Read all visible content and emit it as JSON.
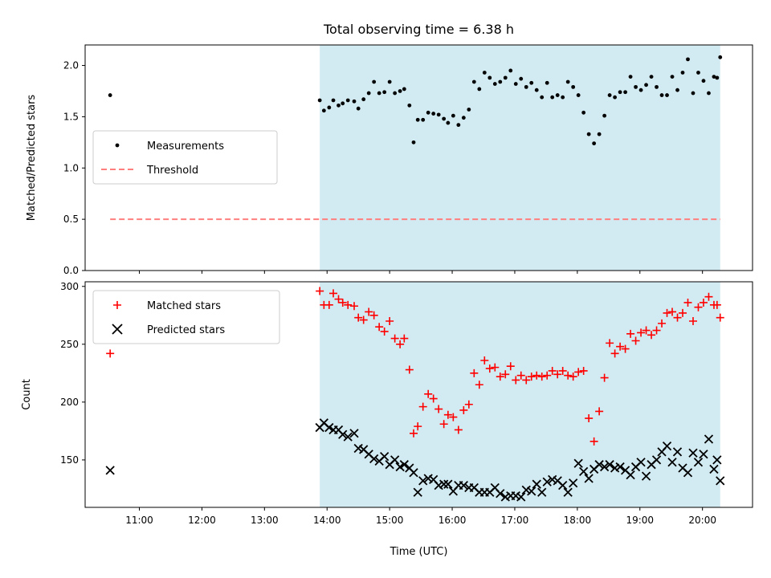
{
  "chart_data": [
    {
      "type": "scatter",
      "title": "Total observing time = 6.38 h",
      "xlabel": "",
      "ylabel": "Matched/Predicted stars",
      "xlim": [
        "10:08",
        "20:48"
      ],
      "ylim": [
        0,
        2.2
      ],
      "yticks": [
        "0.0",
        "0.5",
        "1.0",
        "1.5",
        "2.0"
      ],
      "highlight_span": [
        "13:53",
        "20:17"
      ],
      "highlight_color": "#add8e6",
      "legend_position": "center-left",
      "series": [
        {
          "name": "Measurements",
          "color": "#000000",
          "marker": "dot",
          "points": [
            [
              "10:32",
              1.71
            ],
            [
              "13:53",
              1.66
            ],
            [
              "13:57",
              1.56
            ],
            [
              "14:02",
              1.59
            ],
            [
              "14:06",
              1.66
            ],
            [
              "14:11",
              1.61
            ],
            [
              "14:15",
              1.63
            ],
            [
              "14:20",
              1.66
            ],
            [
              "14:26",
              1.65
            ],
            [
              "14:30",
              1.58
            ],
            [
              "14:35",
              1.67
            ],
            [
              "14:40",
              1.73
            ],
            [
              "14:45",
              1.84
            ],
            [
              "14:50",
              1.73
            ],
            [
              "14:55",
              1.74
            ],
            [
              "15:00",
              1.84
            ],
            [
              "15:05",
              1.73
            ],
            [
              "15:10",
              1.75
            ],
            [
              "15:14",
              1.77
            ],
            [
              "15:19",
              1.61
            ],
            [
              "15:23",
              1.25
            ],
            [
              "15:27",
              1.47
            ],
            [
              "15:32",
              1.47
            ],
            [
              "15:37",
              1.54
            ],
            [
              "15:42",
              1.53
            ],
            [
              "15:47",
              1.52
            ],
            [
              "15:52",
              1.48
            ],
            [
              "15:56",
              1.44
            ],
            [
              "16:01",
              1.51
            ],
            [
              "16:06",
              1.42
            ],
            [
              "16:11",
              1.49
            ],
            [
              "16:16",
              1.57
            ],
            [
              "16:21",
              1.84
            ],
            [
              "16:26",
              1.77
            ],
            [
              "16:31",
              1.93
            ],
            [
              "16:36",
              1.88
            ],
            [
              "16:41",
              1.82
            ],
            [
              "16:46",
              1.84
            ],
            [
              "16:51",
              1.88
            ],
            [
              "16:56",
              1.95
            ],
            [
              "17:01",
              1.82
            ],
            [
              "17:06",
              1.87
            ],
            [
              "17:11",
              1.79
            ],
            [
              "17:16",
              1.83
            ],
            [
              "17:21",
              1.76
            ],
            [
              "17:26",
              1.69
            ],
            [
              "17:31",
              1.83
            ],
            [
              "17:36",
              1.69
            ],
            [
              "17:41",
              1.71
            ],
            [
              "17:46",
              1.69
            ],
            [
              "17:51",
              1.84
            ],
            [
              "17:56",
              1.79
            ],
            [
              "18:01",
              1.71
            ],
            [
              "18:06",
              1.54
            ],
            [
              "18:11",
              1.33
            ],
            [
              "18:16",
              1.24
            ],
            [
              "18:21",
              1.33
            ],
            [
              "18:26",
              1.51
            ],
            [
              "18:31",
              1.71
            ],
            [
              "18:36",
              1.69
            ],
            [
              "18:41",
              1.74
            ],
            [
              "18:46",
              1.74
            ],
            [
              "18:51",
              1.89
            ],
            [
              "18:56",
              1.79
            ],
            [
              "19:01",
              1.76
            ],
            [
              "19:06",
              1.81
            ],
            [
              "19:11",
              1.89
            ],
            [
              "19:16",
              1.79
            ],
            [
              "19:21",
              1.71
            ],
            [
              "19:26",
              1.71
            ],
            [
              "19:31",
              1.89
            ],
            [
              "19:36",
              1.76
            ],
            [
              "19:41",
              1.93
            ],
            [
              "19:46",
              2.06
            ],
            [
              "19:51",
              1.73
            ],
            [
              "19:56",
              1.93
            ],
            [
              "20:01",
              1.85
            ],
            [
              "20:06",
              1.73
            ],
            [
              "20:11",
              1.89
            ],
            [
              "20:14",
              1.88
            ],
            [
              "20:17",
              2.08
            ]
          ]
        },
        {
          "name": "Threshold",
          "color": "#ff7f7f",
          "style": "dashed",
          "points": [
            [
              "10:32",
              0.5
            ],
            [
              "20:17",
              0.5
            ]
          ]
        }
      ]
    },
    {
      "type": "scatter",
      "title": "",
      "xlabel": "Time (UTC)",
      "ylabel": "Count",
      "xlim": [
        "10:08",
        "20:48"
      ],
      "ylim": [
        109,
        304
      ],
      "xticks": [
        "11:00",
        "12:00",
        "13:00",
        "14:00",
        "15:00",
        "16:00",
        "17:00",
        "18:00",
        "19:00",
        "20:00"
      ],
      "yticks": [
        "150",
        "200",
        "250",
        "300"
      ],
      "highlight_span": [
        "13:53",
        "20:17"
      ],
      "legend_position": "upper-left",
      "series": [
        {
          "name": "Matched stars",
          "color": "#ff0000",
          "marker": "plus",
          "points": [
            [
              "10:32",
              242
            ],
            [
              "13:53",
              296
            ],
            [
              "13:57",
              284
            ],
            [
              "14:02",
              284
            ],
            [
              "14:06",
              294
            ],
            [
              "14:11",
              289
            ],
            [
              "14:15",
              286
            ],
            [
              "14:20",
              284
            ],
            [
              "14:26",
              283
            ],
            [
              "14:30",
              273
            ],
            [
              "14:35",
              271
            ],
            [
              "14:40",
              278
            ],
            [
              "14:45",
              275
            ],
            [
              "14:50",
              265
            ],
            [
              "14:55",
              261
            ],
            [
              "15:00",
              270
            ],
            [
              "15:05",
              255
            ],
            [
              "15:10",
              250
            ],
            [
              "15:14",
              255
            ],
            [
              "15:19",
              228
            ],
            [
              "15:23",
              173
            ],
            [
              "15:27",
              179
            ],
            [
              "15:32",
              196
            ],
            [
              "15:37",
              207
            ],
            [
              "15:42",
              203
            ],
            [
              "15:47",
              194
            ],
            [
              "15:52",
              181
            ],
            [
              "15:56",
              189
            ],
            [
              "16:01",
              187
            ],
            [
              "16:06",
              176
            ],
            [
              "16:11",
              193
            ],
            [
              "16:16",
              198
            ],
            [
              "16:21",
              225
            ],
            [
              "16:26",
              215
            ],
            [
              "16:31",
              236
            ],
            [
              "16:36",
              229
            ],
            [
              "16:41",
              230
            ],
            [
              "16:46",
              222
            ],
            [
              "16:51",
              224
            ],
            [
              "16:56",
              231
            ],
            [
              "17:01",
              219
            ],
            [
              "17:06",
              223
            ],
            [
              "17:11",
              219
            ],
            [
              "17:16",
              222
            ],
            [
              "17:21",
              223
            ],
            [
              "17:26",
              222
            ],
            [
              "17:31",
              223
            ],
            [
              "17:36",
              227
            ],
            [
              "17:41",
              224
            ],
            [
              "17:46",
              227
            ],
            [
              "17:51",
              223
            ],
            [
              "17:56",
              222
            ],
            [
              "18:01",
              226
            ],
            [
              "18:06",
              227
            ],
            [
              "18:11",
              186
            ],
            [
              "18:16",
              166
            ],
            [
              "18:21",
              192
            ],
            [
              "18:26",
              221
            ],
            [
              "18:31",
              251
            ],
            [
              "18:36",
              242
            ],
            [
              "18:41",
              248
            ],
            [
              "18:46",
              246
            ],
            [
              "18:51",
              259
            ],
            [
              "18:56",
              253
            ],
            [
              "19:01",
              260
            ],
            [
              "19:06",
              262
            ],
            [
              "19:11",
              258
            ],
            [
              "19:16",
              262
            ],
            [
              "19:21",
              268
            ],
            [
              "19:26",
              277
            ],
            [
              "19:31",
              278
            ],
            [
              "19:36",
              273
            ],
            [
              "19:41",
              277
            ],
            [
              "19:46",
              286
            ],
            [
              "19:51",
              270
            ],
            [
              "19:56",
              282
            ],
            [
              "20:01",
              286
            ],
            [
              "20:06",
              291
            ],
            [
              "20:11",
              284
            ],
            [
              "20:14",
              284
            ],
            [
              "20:17",
              273
            ]
          ]
        },
        {
          "name": "Predicted stars",
          "color": "#000000",
          "marker": "x",
          "points": [
            [
              "10:32",
              141
            ],
            [
              "13:53",
              178
            ],
            [
              "13:57",
              182
            ],
            [
              "14:02",
              178
            ],
            [
              "14:06",
              176
            ],
            [
              "14:11",
              176
            ],
            [
              "14:15",
              172
            ],
            [
              "14:20",
              170
            ],
            [
              "14:26",
              173
            ],
            [
              "14:30",
              160
            ],
            [
              "14:35",
              159
            ],
            [
              "14:40",
              155
            ],
            [
              "14:45",
              151
            ],
            [
              "14:50",
              149
            ],
            [
              "14:55",
              153
            ],
            [
              "15:00",
              146
            ],
            [
              "15:05",
              150
            ],
            [
              "15:10",
              144
            ],
            [
              "15:14",
              146
            ],
            [
              "15:19",
              143
            ],
            [
              "15:23",
              139
            ],
            [
              "15:27",
              122
            ],
            [
              "15:32",
              132
            ],
            [
              "15:37",
              134
            ],
            [
              "15:42",
              133
            ],
            [
              "15:47",
              128
            ],
            [
              "15:52",
              129
            ],
            [
              "15:56",
              129
            ],
            [
              "16:01",
              123
            ],
            [
              "16:06",
              128
            ],
            [
              "16:11",
              128
            ],
            [
              "16:16",
              126
            ],
            [
              "16:21",
              126
            ],
            [
              "16:26",
              122
            ],
            [
              "16:31",
              122
            ],
            [
              "16:36",
              122
            ],
            [
              "16:41",
              126
            ],
            [
              "16:46",
              121
            ],
            [
              "16:51",
              118
            ],
            [
              "16:56",
              119
            ],
            [
              "17:01",
              119
            ],
            [
              "17:06",
              118
            ],
            [
              "17:11",
              124
            ],
            [
              "17:16",
              123
            ],
            [
              "17:21",
              129
            ],
            [
              "17:26",
              122
            ],
            [
              "17:31",
              131
            ],
            [
              "17:36",
              133
            ],
            [
              "17:41",
              132
            ],
            [
              "17:46",
              128
            ],
            [
              "17:51",
              122
            ],
            [
              "17:56",
              130
            ],
            [
              "18:01",
              147
            ],
            [
              "18:06",
              140
            ],
            [
              "18:11",
              134
            ],
            [
              "18:16",
              142
            ],
            [
              "18:21",
              146
            ],
            [
              "18:26",
              144
            ],
            [
              "18:31",
              146
            ],
            [
              "18:36",
              143
            ],
            [
              "18:41",
              144
            ],
            [
              "18:46",
              141
            ],
            [
              "18:51",
              137
            ],
            [
              "18:56",
              144
            ],
            [
              "19:01",
              148
            ],
            [
              "19:06",
              136
            ],
            [
              "19:11",
              146
            ],
            [
              "19:16",
              150
            ],
            [
              "19:21",
              157
            ],
            [
              "19:26",
              162
            ],
            [
              "19:31",
              148
            ],
            [
              "19:36",
              157
            ],
            [
              "19:41",
              143
            ],
            [
              "19:46",
              139
            ],
            [
              "19:51",
              156
            ],
            [
              "19:56",
              148
            ],
            [
              "20:01",
              155
            ],
            [
              "20:06",
              168
            ],
            [
              "20:11",
              142
            ],
            [
              "20:14",
              150
            ],
            [
              "20:17",
              132
            ]
          ]
        }
      ]
    }
  ]
}
